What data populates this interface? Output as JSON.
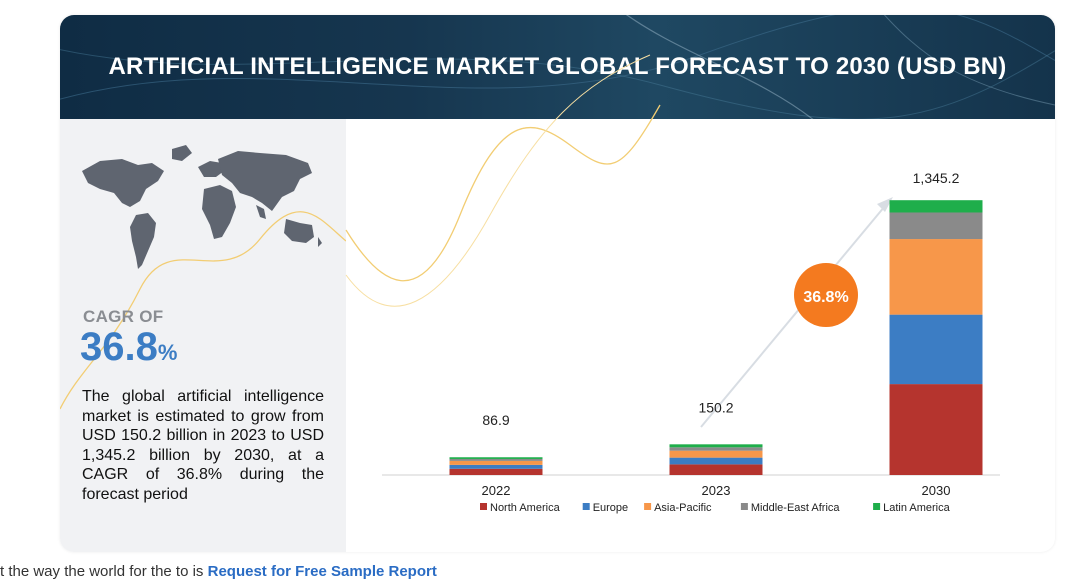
{
  "title": "ARTIFICIAL INTELLIGENCE MARKET GLOBAL FORECAST TO 2030 (USD BN)",
  "cagr": {
    "label": "CAGR OF",
    "value": "36.8",
    "unit": "%",
    "bubble": "36.8%"
  },
  "description": "The global artificial intelligence market is estimated to grow from USD 150.2 billion in 2023 to USD 1,345.2 billion by 2030, at a CAGR of 36.8% during the forecast period",
  "footer": {
    "prefix": "t the way  the  world    for    the  to  is",
    "link": "Request for Free Sample Report"
  },
  "colors": {
    "accent": "#3c7dc4",
    "bubble": "#f47a1f",
    "banner": "#14334b"
  },
  "chart_data": {
    "type": "bar",
    "stacked": true,
    "categories": [
      "2022",
      "2023",
      "2030"
    ],
    "totals": [
      "86.9",
      "150.2",
      "1,345.2"
    ],
    "ylim": [
      0,
      1400
    ],
    "series": [
      {
        "name": "North America",
        "color": "#b5342e",
        "values": [
          30.5,
          52.0,
          445.0
        ]
      },
      {
        "name": "Europe",
        "color": "#3c7dc4",
        "values": [
          19.0,
          33.0,
          340.0
        ]
      },
      {
        "name": "Asia-Pacific",
        "color": "#f7974a",
        "values": [
          19.5,
          34.0,
          370.0
        ]
      },
      {
        "name": "Middle-East Africa",
        "color": "#8a8a8a",
        "values": [
          9.5,
          16.5,
          130.0
        ]
      },
      {
        "name": "Latin America",
        "color": "#1fae4b",
        "values": [
          8.4,
          14.7,
          60.2
        ]
      }
    ],
    "legend_position": "bottom",
    "grid": false
  }
}
